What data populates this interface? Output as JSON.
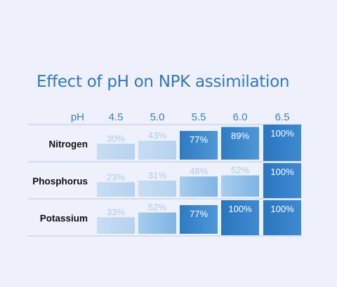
{
  "title": "Effect of pH on NPK assimilation",
  "colors": {
    "background": "#eef0fb",
    "title": "#2f79ba",
    "header_text": "#3b7fc1",
    "row_label": "#111111",
    "divider": "#b9c9df",
    "bar_light": "#cfe2f5",
    "bar_mid": "#8ec0e9",
    "bar_dark": "#2f7cc3",
    "label_light": "#a9cbe9",
    "label_dark": "#ffffff"
  },
  "chart_data": {
    "type": "table",
    "title": "Effect of pH on NPK assimilation",
    "header_label": "pH",
    "categories": [
      "4.5",
      "5.0",
      "5.5",
      "6.0",
      "6.5"
    ],
    "ylim": [
      0,
      100
    ],
    "series": [
      {
        "name": "Nitrogen",
        "values": [
          30,
          43,
          77,
          89,
          100
        ],
        "labels": [
          "30%",
          "43%",
          "77%",
          "89%",
          "100%"
        ]
      },
      {
        "name": "Phosphorus",
        "values": [
          23,
          31,
          48,
          52,
          100
        ],
        "labels": [
          "23%",
          "31%",
          "48%",
          "52%",
          "100%"
        ]
      },
      {
        "name": "Potassium",
        "values": [
          33,
          52,
          77,
          100,
          100
        ],
        "labels": [
          "33%",
          "52%",
          "77%",
          "100%",
          "100%"
        ]
      }
    ]
  }
}
